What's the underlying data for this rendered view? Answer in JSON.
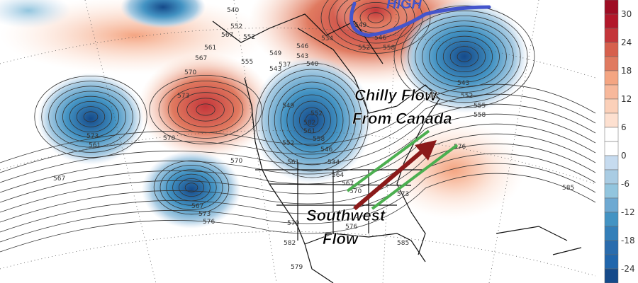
{
  "map": {
    "annotations": {
      "high": "HIGH",
      "chilly_line1": "Chilly Flow",
      "chilly_line2": "From Canada",
      "southwest_line1": "Southwest",
      "southwest_line2": "Flow"
    },
    "contour_labels": [
      "552",
      "558",
      "549",
      "546",
      "543",
      "540",
      "537",
      "534",
      "546",
      "543",
      "552",
      "555",
      "558",
      "561",
      "567",
      "552",
      "555",
      "549",
      "543",
      "540",
      "552",
      "567",
      "570",
      "573",
      "573",
      "561",
      "567",
      "582",
      "561",
      "558",
      "546",
      "552",
      "534",
      "549",
      "561",
      "564",
      "567",
      "570",
      "573",
      "576",
      "570",
      "567",
      "573",
      "576",
      "579",
      "582",
      "585",
      "585",
      "576",
      "552",
      "570",
      "579"
    ],
    "colors": {
      "warm_anomaly": "#d6604d",
      "cold_anomaly": "#2166ac",
      "high_outline": "#4455cc",
      "arrow_southwest": "#8b1a1a",
      "flow_lines": "#4caf50"
    }
  },
  "colorbar": {
    "ticks": [
      "30",
      "24",
      "18",
      "12",
      "6",
      "0",
      "-6",
      "-12",
      "-18",
      "-24"
    ],
    "colors": [
      "#9e0d24",
      "#b2182b",
      "#c4363a",
      "#d6604d",
      "#e07a60",
      "#f4a582",
      "#f7b89b",
      "#fbd0b9",
      "#fde0d0",
      "#ffffff",
      "#ffffff",
      "#c6dbef",
      "#a9cce3",
      "#92c5de",
      "#6ea9d2",
      "#4393c3",
      "#347fb9",
      "#2a6cad",
      "#2166ac",
      "#154a8a"
    ]
  }
}
